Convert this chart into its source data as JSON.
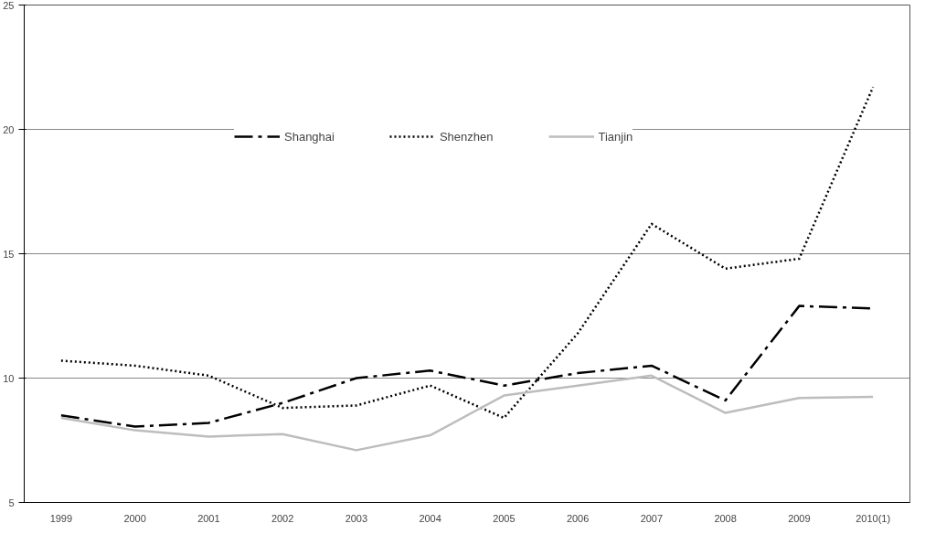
{
  "chart_data": {
    "type": "line",
    "categories": [
      "1999",
      "2000",
      "2001",
      "2002",
      "2003",
      "2004",
      "2005",
      "2006",
      "2007",
      "2008",
      "2009",
      "2010(1)"
    ],
    "series": [
      {
        "name": "Shanghai",
        "color": "#000000",
        "line_style": "dashed",
        "values": [
          8.5,
          8.05,
          8.2,
          9.0,
          10.0,
          10.3,
          9.7,
          10.2,
          10.5,
          9.1,
          12.9,
          12.8
        ]
      },
      {
        "name": "Shenzhen",
        "color": "#000000",
        "line_style": "dotted",
        "values": [
          10.7,
          10.5,
          10.1,
          8.8,
          8.9,
          9.7,
          8.4,
          11.8,
          16.2,
          14.4,
          14.8,
          21.7
        ]
      },
      {
        "name": "Tianjin",
        "color": "#bdbdbd",
        "line_style": "solid",
        "values": [
          8.4,
          7.9,
          7.65,
          7.75,
          7.1,
          7.7,
          9.3,
          9.7,
          10.1,
          8.6,
          9.2,
          9.25
        ]
      }
    ],
    "ylim": [
      5,
      25
    ],
    "yticks": [
      5,
      10,
      15,
      20,
      25
    ],
    "grid": "y",
    "legend": "top",
    "marker": "none"
  }
}
